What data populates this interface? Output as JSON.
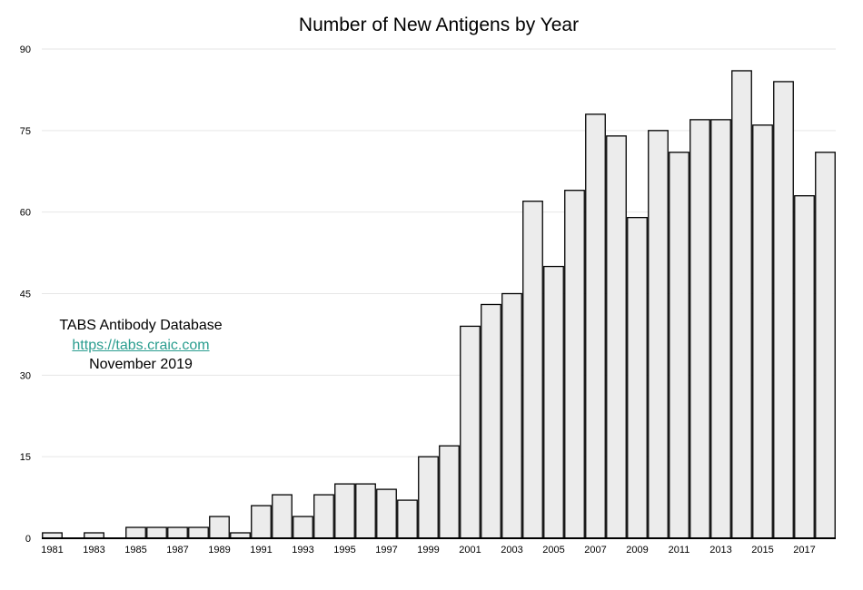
{
  "chart_data": {
    "type": "bar",
    "title": "Number of New Antigens by Year",
    "xlabel": "",
    "ylabel": "",
    "ylim": [
      0,
      90
    ],
    "yticks": [
      0,
      15,
      30,
      45,
      60,
      75,
      90
    ],
    "grid": true,
    "categories": [
      "1981",
      "1982",
      "1983",
      "1984",
      "1985",
      "1986",
      "1987",
      "1988",
      "1989",
      "1990",
      "1991",
      "1992",
      "1993",
      "1994",
      "1995",
      "1996",
      "1997",
      "1998",
      "1999",
      "2000",
      "2001",
      "2002",
      "2003",
      "2004",
      "2005",
      "2006",
      "2007",
      "2008",
      "2009",
      "2010",
      "2011",
      "2012",
      "2013",
      "2014",
      "2015",
      "2016",
      "2017",
      "2018"
    ],
    "tick_labels": [
      "1981",
      "1983",
      "1985",
      "1987",
      "1989",
      "1991",
      "1993",
      "1995",
      "1997",
      "1999",
      "2001",
      "2003",
      "2005",
      "2007",
      "2009",
      "2011",
      "2013",
      "2015",
      "2017"
    ],
    "values": [
      1,
      0,
      1,
      0,
      2,
      2,
      2,
      2,
      4,
      1,
      6,
      8,
      4,
      8,
      10,
      10,
      9,
      7,
      15,
      17,
      39,
      43,
      45,
      62,
      50,
      64,
      78,
      74,
      59,
      75,
      71,
      77,
      77,
      86,
      76,
      84,
      63,
      71
    ],
    "colors": {
      "bar_fill": "#ececec",
      "bar_stroke": "#000000",
      "link": "#2a9d8f"
    }
  },
  "annotation": {
    "line1": "TABS Antibody Database",
    "link": "https://tabs.craic.com",
    "line3": "November 2019"
  }
}
